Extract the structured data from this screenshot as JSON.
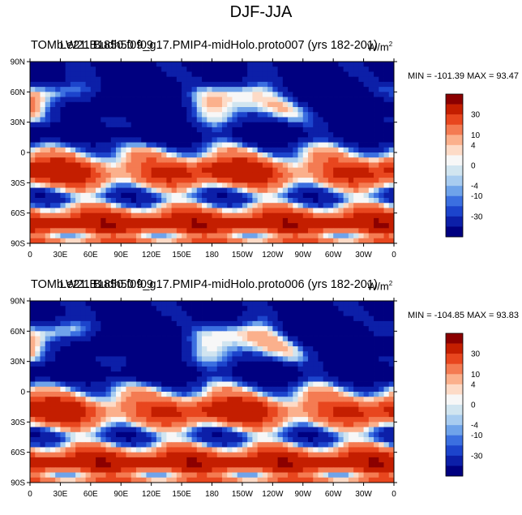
{
  "page": {
    "main_title": "DJF-JJA"
  },
  "colorbar": {
    "labels": [
      "30",
      "10",
      "4",
      "0",
      "-4",
      "-10",
      "-30"
    ],
    "colors": [
      "#8b0000",
      "#c41e00",
      "#e8461e",
      "#f47b52",
      "#fbb08c",
      "#fddbc7",
      "#f7f7f7",
      "#d1e5f0",
      "#a8ccf0",
      "#6fa3ea",
      "#3b6fe0",
      "#1c44cc",
      "#0c1fa8",
      "#000080"
    ]
  },
  "axes": {
    "lat_labels": [
      "90N",
      "60N",
      "30N",
      "0",
      "30S",
      "60S",
      "90S"
    ],
    "lon_labels": [
      "0",
      "30E",
      "60E",
      "90E",
      "120E",
      "150E",
      "180",
      "150W",
      "120W",
      "90W",
      "60W",
      "30W",
      "0"
    ]
  },
  "chart_data": [
    {
      "type": "heatmap",
      "title_left": "TOM LW21 Budh50 f09",
      "title_right": "b.e21.B1850.f09_g17.PMIP4-midHolo.proto007 (yrs 182-201)",
      "units": "W/m",
      "units_sup": "2",
      "stats": "MIN = -101.39 MAX =  93.47",
      "min": -101.39,
      "max": 93.47,
      "xlim": [
        0,
        360
      ],
      "ylim": [
        -90,
        90
      ]
    },
    {
      "type": "heatmap",
      "title_left": "TOM LW21 Budh50 f09",
      "title_right": "b.e21.B1850.f09_g17.PMIP4-midHolo.proto006 (yrs 182-201)",
      "units": "W/m",
      "units_sup": "2",
      "stats": "MIN = -104.85 MAX =  93.83",
      "min": -104.85,
      "max": 93.83,
      "xlim": [
        0,
        360
      ],
      "ylim": [
        -90,
        90
      ]
    }
  ]
}
